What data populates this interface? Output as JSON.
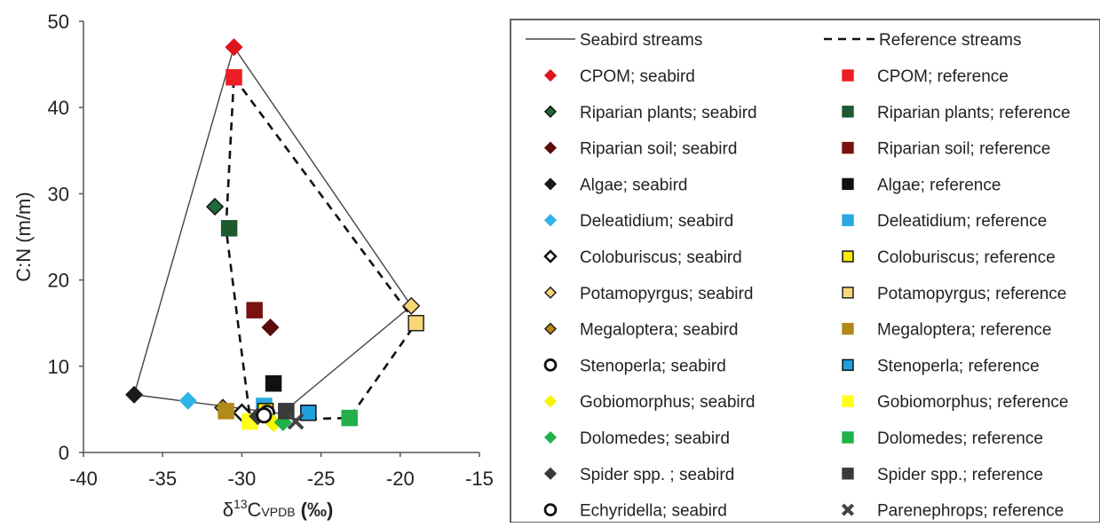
{
  "chart_data": {
    "type": "scatter",
    "title": "",
    "xlabel": "δ13C VPDB (‰)",
    "xlabel_parts": {
      "delta": "δ",
      "sup": "13",
      "c": "C",
      "sub": "VPDB",
      "unit": " (‰)"
    },
    "ylabel": "C:N (m/m)",
    "xlim": [
      -40,
      -15
    ],
    "ylim": [
      0,
      50
    ],
    "xticks": [
      "-40",
      "-35",
      "-30",
      "-25",
      "-20",
      "-15"
    ],
    "yticks": [
      "0",
      "10",
      "20",
      "30",
      "40",
      "50"
    ],
    "legend_position": "right",
    "lines": [
      {
        "name": "Seabird streams",
        "dash": "solid",
        "color": "#444444",
        "points": [
          [
            -30.5,
            47
          ],
          [
            -19.3,
            17
          ],
          [
            -27.5,
            4.5
          ],
          [
            -36.8,
            6.7
          ],
          [
            -30.5,
            47
          ]
        ]
      },
      {
        "name": "Reference streams",
        "dash": "dashed",
        "color": "#111111",
        "points": [
          [
            -30.5,
            43.5
          ],
          [
            -19.0,
            15
          ],
          [
            -23.2,
            4
          ],
          [
            -28.0,
            3.8
          ],
          [
            -29.5,
            4.2
          ],
          [
            -31.0,
            26
          ],
          [
            -30.5,
            43.5
          ]
        ]
      }
    ],
    "series": [
      {
        "name": "CPOM; seabird",
        "marker": "diamond",
        "color": "#e0141c",
        "stroke": "#e0141c",
        "x": -30.5,
        "y": 47
      },
      {
        "name": "CPOM; reference",
        "marker": "square",
        "color": "#ee1c24",
        "stroke": "#ee1c24",
        "x": -30.5,
        "y": 43.5
      },
      {
        "name": "Riparian plants; seabird",
        "marker": "diamond",
        "color": "#1d6a3a",
        "stroke": "#111111",
        "x": -31.7,
        "y": 28.5
      },
      {
        "name": "Riparian plants; reference",
        "marker": "square",
        "color": "#1e5a2e",
        "stroke": "#1e5a2e",
        "x": -30.8,
        "y": 26
      },
      {
        "name": "Riparian soil; seabird",
        "marker": "diamond",
        "color": "#5a0c0c",
        "stroke": "#5a0c0c",
        "x": -28.2,
        "y": 14.5
      },
      {
        "name": "Riparian soil; reference",
        "marker": "square",
        "color": "#7a1212",
        "stroke": "#7a1212",
        "x": -29.2,
        "y": 16.5
      },
      {
        "name": "Algae; seabird",
        "marker": "diamond",
        "color": "#1a1a1a",
        "stroke": "#1a1a1a",
        "x": -36.8,
        "y": 6.7
      },
      {
        "name": "Algae; reference",
        "marker": "square",
        "color": "#111111",
        "stroke": "#111111",
        "x": -28.0,
        "y": 8
      },
      {
        "name": "Deleatidium; seabird",
        "marker": "diamond",
        "color": "#2fb3e8",
        "stroke": "#2fb3e8",
        "x": -33.4,
        "y": 6
      },
      {
        "name": "Deleatidium; reference",
        "marker": "square",
        "color": "#2aa9e0",
        "stroke": "#2aa9e0",
        "x": -28.6,
        "y": 5.4
      },
      {
        "name": "Coloburiscus; seabird",
        "marker": "diamond-open",
        "color": "#ffffff",
        "stroke": "#111111",
        "x": -30.0,
        "y": 4.6
      },
      {
        "name": "Coloburiscus; reference",
        "marker": "square",
        "color": "#ffea00",
        "stroke": "#111111",
        "x": -28.5,
        "y": 4.8
      },
      {
        "name": "Potamopyrgus; seabird",
        "marker": "diamond",
        "color": "#f7d774",
        "stroke": "#222222",
        "x": -19.3,
        "y": 17
      },
      {
        "name": "Potamopyrgus; reference",
        "marker": "square",
        "color": "#f8d774",
        "stroke": "#222222",
        "x": -19.0,
        "y": 15
      },
      {
        "name": "Megaloptera; seabird",
        "marker": "diamond",
        "color": "#b8860b",
        "stroke": "#222222",
        "x": -31.2,
        "y": 5.2
      },
      {
        "name": "Megaloptera; reference",
        "marker": "square",
        "color": "#b08a1a",
        "stroke": "#b08a1a",
        "x": -31.0,
        "y": 4.8
      },
      {
        "name": "Stenoperla; seabird",
        "marker": "circle-open",
        "color": "#ffffff",
        "stroke": "#111111",
        "x": -28.4,
        "y": 4.6
      },
      {
        "name": "Stenoperla; reference",
        "marker": "square",
        "color": "#1ea0de",
        "stroke": "#111111",
        "x": -25.8,
        "y": 4.6
      },
      {
        "name": "Gobiomorphus; seabird",
        "marker": "diamond",
        "color": "#f5f500",
        "stroke": "#f5f500",
        "x": -28.0,
        "y": 3.4
      },
      {
        "name": "Gobiomorphus; reference",
        "marker": "square",
        "color": "#ffff1a",
        "stroke": "#ffff1a",
        "x": -29.5,
        "y": 3.6
      },
      {
        "name": "Dolomedes; seabird",
        "marker": "diamond",
        "color": "#22b04a",
        "stroke": "#22b04a",
        "x": -27.4,
        "y": 3.5
      },
      {
        "name": "Dolomedes; reference",
        "marker": "square",
        "color": "#22b04a",
        "stroke": "#22b04a",
        "x": -23.2,
        "y": 4
      },
      {
        "name": "Spider spp. ; seabird",
        "marker": "diamond",
        "color": "#3a3a3a",
        "stroke": "#3a3a3a",
        "x": -29.0,
        "y": 4.2
      },
      {
        "name": "Spider spp.; reference",
        "marker": "square",
        "color": "#3a3a3a",
        "stroke": "#3a3a3a",
        "x": -27.2,
        "y": 4.8
      },
      {
        "name": "Echyridella; seabird",
        "marker": "circle-open",
        "color": "#ffffff",
        "stroke": "#111111",
        "x": -28.6,
        "y": 4.3
      },
      {
        "name": "Parenephrops; reference",
        "marker": "x",
        "color": "#444444",
        "stroke": "#444444",
        "x": -26.6,
        "y": 3.6
      }
    ]
  }
}
